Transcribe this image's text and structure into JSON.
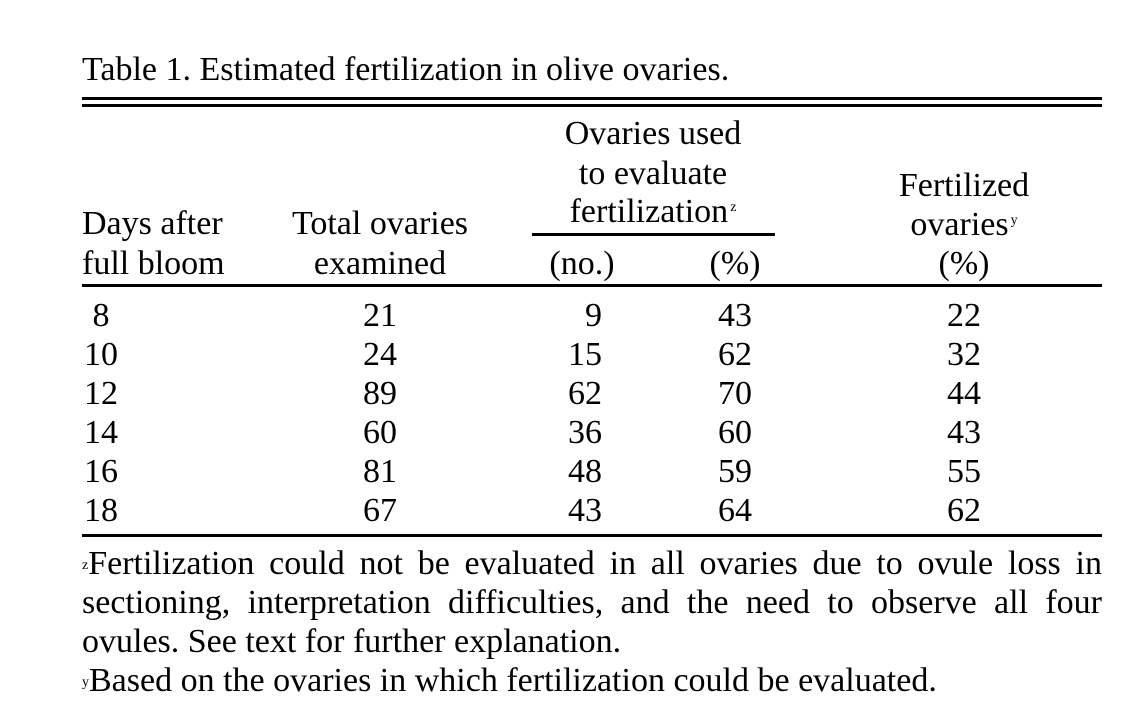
{
  "caption": "Table 1. Estimated fertilization in olive ovaries.",
  "headers": {
    "days_line1": "Days after",
    "days_line2": "full bloom",
    "total_line1": "Total ovaries",
    "total_line2": "examined",
    "used_line1": "Ovaries used",
    "used_line2": "to evaluate",
    "used_line3": "fertilization",
    "used_marker": "z",
    "used_sub_no": "(no.)",
    "used_sub_pct": "(%)",
    "fert_line1": "Fertilized",
    "fert_line2": "ovaries",
    "fert_marker": "y",
    "fert_line3": "(%)"
  },
  "rows": [
    {
      "days": "8",
      "total": "21",
      "no": "9",
      "pct": "43",
      "fert": "22"
    },
    {
      "days": "10",
      "total": "24",
      "no": "15",
      "pct": "62",
      "fert": "32"
    },
    {
      "days": "12",
      "total": "89",
      "no": "62",
      "pct": "70",
      "fert": "44"
    },
    {
      "days": "14",
      "total": "60",
      "no": "36",
      "pct": "60",
      "fert": "43"
    },
    {
      "days": "16",
      "total": "81",
      "no": "48",
      "pct": "59",
      "fert": "55"
    },
    {
      "days": "18",
      "total": "67",
      "no": "43",
      "pct": "64",
      "fert": "62"
    }
  ],
  "footnotes": {
    "z_marker": "z",
    "z_text": "Fertilization could not be evaluated in all ovaries due to ovule loss in sectioning, interpretation difficulties, and the need to observe all four ovules. See text for further explanation.",
    "y_marker": "y",
    "y_text": "Based on the ovaries in which fertilization could be evaluated."
  }
}
